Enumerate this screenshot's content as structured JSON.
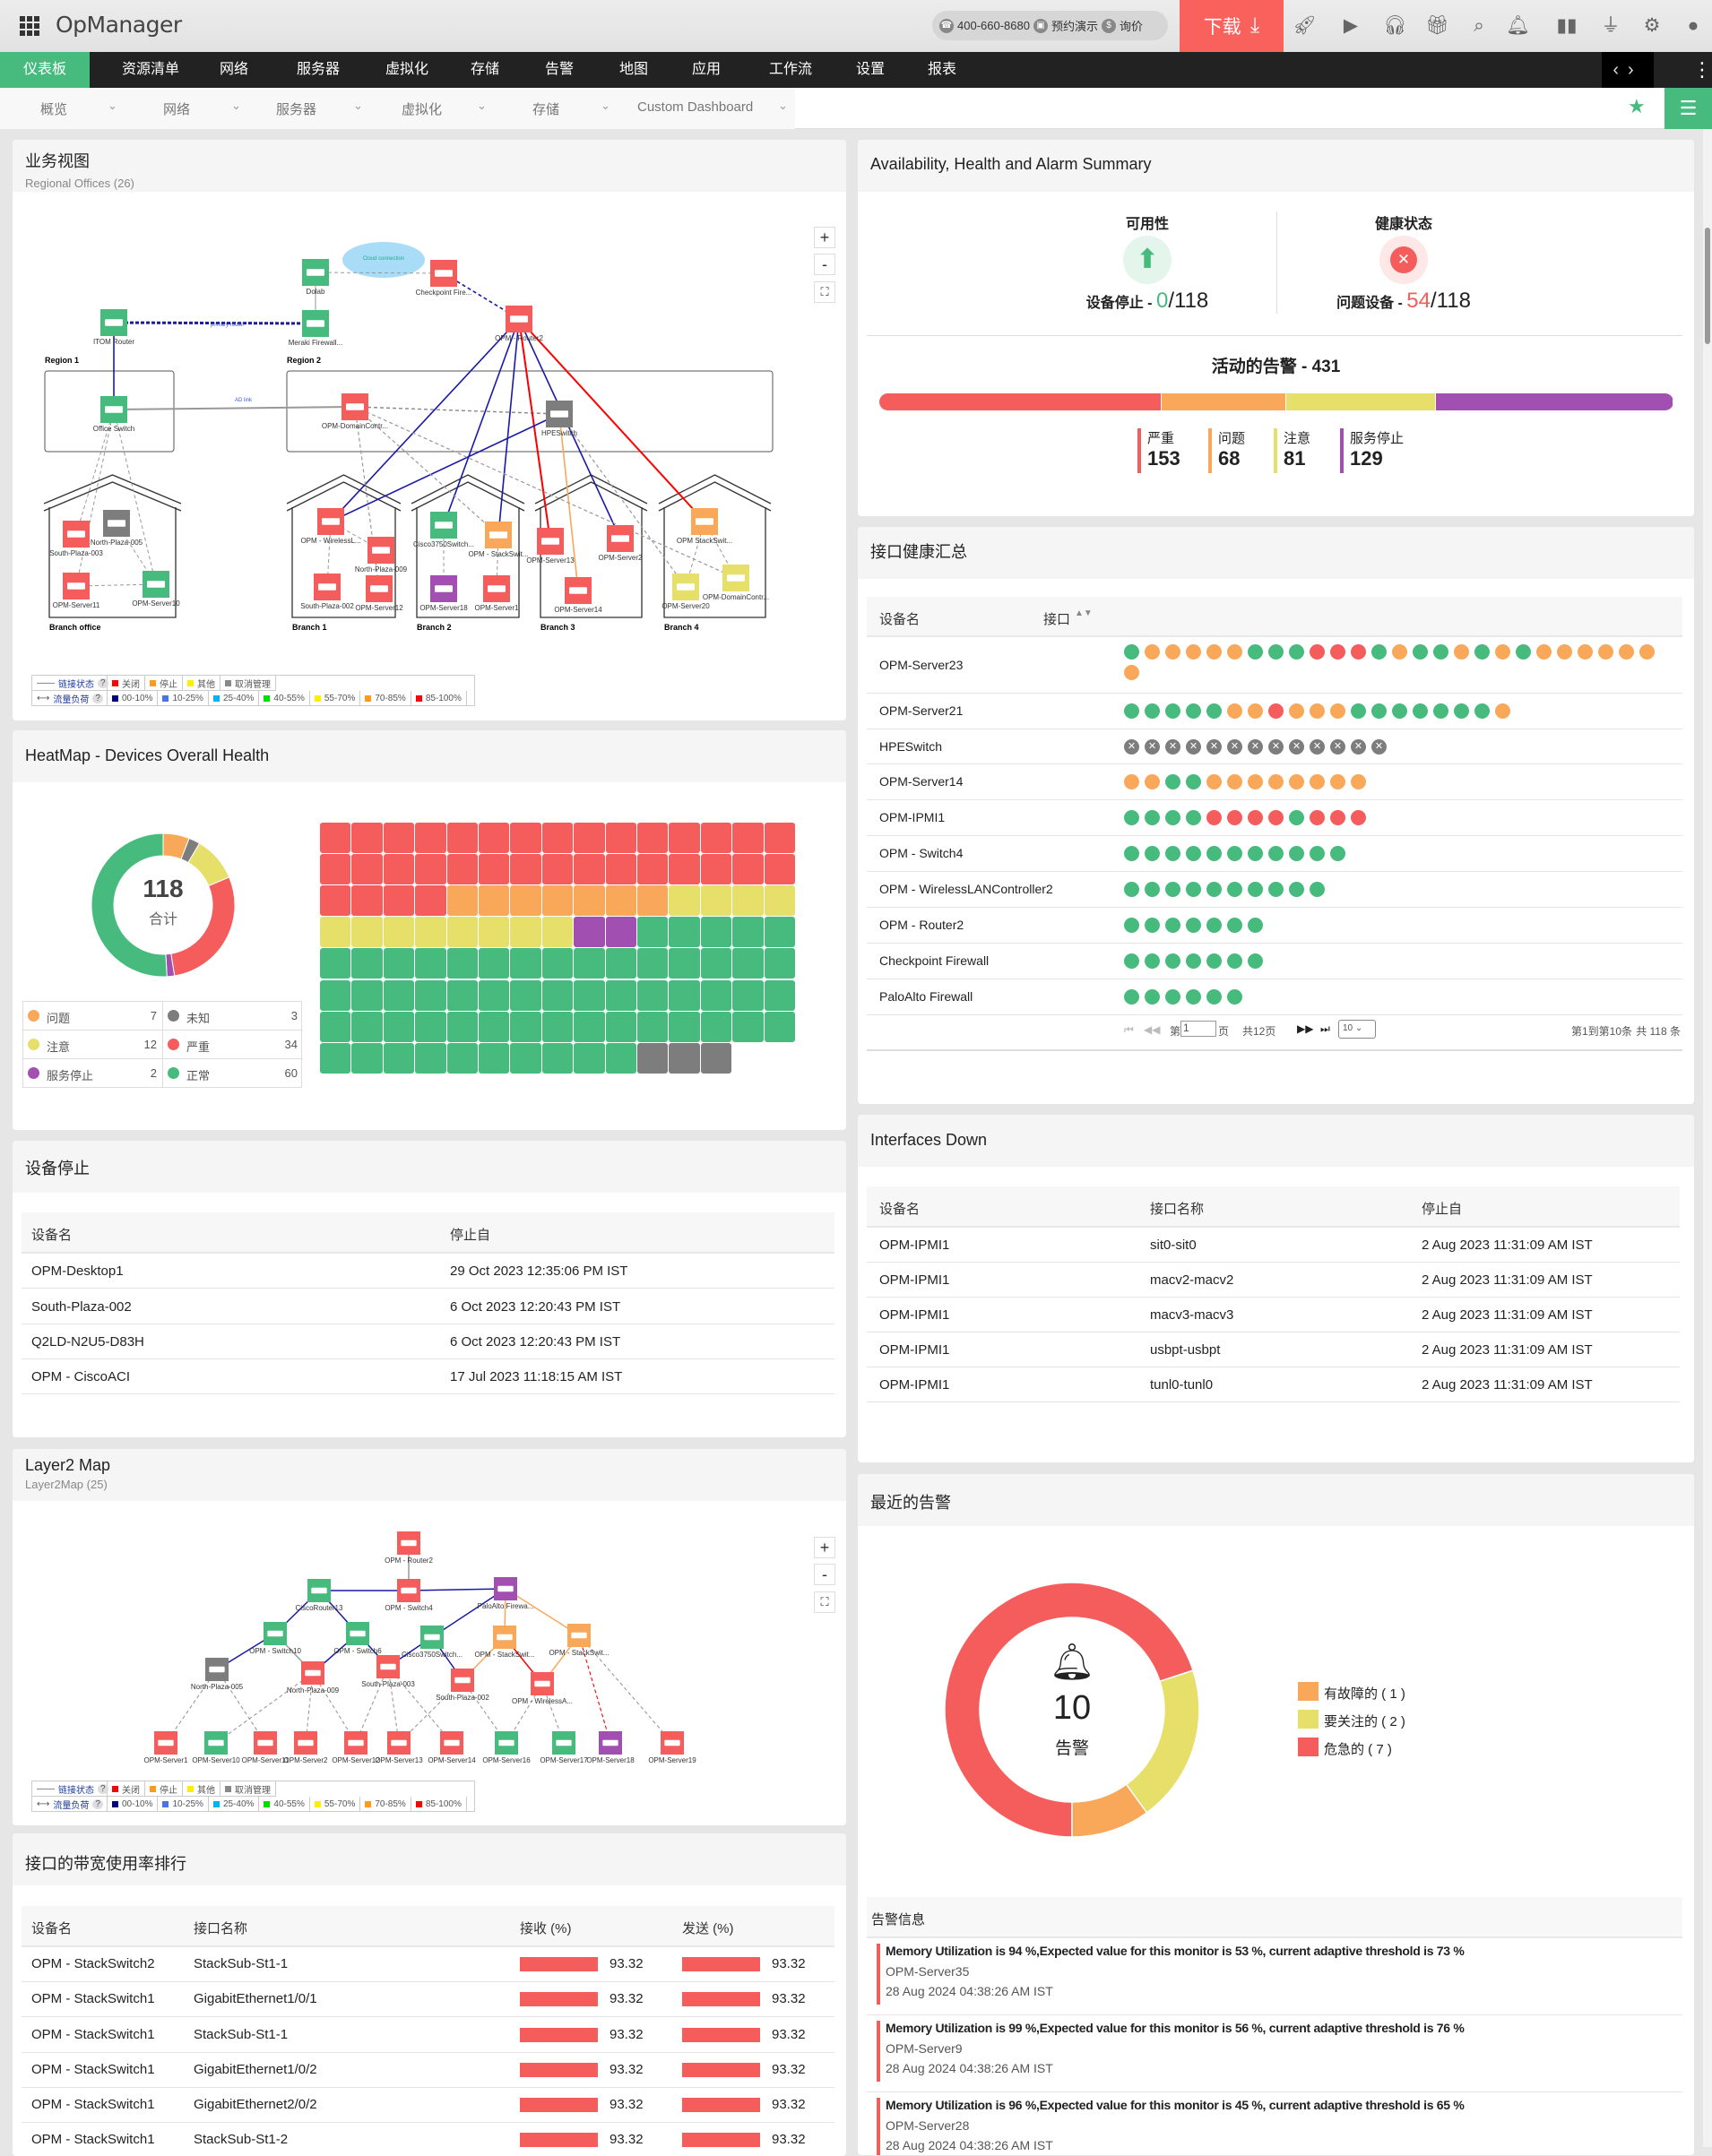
{
  "app": {
    "title": "OpManager",
    "phone": "400-660-8680",
    "demo": "预约演示",
    "quote": "询价",
    "download": "下载"
  },
  "top_icons": [
    "rocket-icon",
    "presentation-icon",
    "headset-icon",
    "gift-icon",
    "search-icon",
    "bell-icon",
    "battery-icon",
    "plug-icon",
    "gear-icon",
    "user-icon"
  ],
  "nav": {
    "items": [
      "仪表板",
      "资源清单",
      "网络",
      "服务器",
      "虚拟化",
      "存储",
      "告警",
      "地图",
      "应用",
      "工作流",
      "设置",
      "报表"
    ],
    "active": 0
  },
  "subnav": {
    "items": [
      "概览",
      "网络",
      "服务器",
      "虚拟化",
      "存储",
      "Custom Dashboard"
    ]
  },
  "colors": {
    "critical": "#f55c5c",
    "trouble": "#f9a85a",
    "attention": "#e6df6a",
    "down": "#a14fb0",
    "clear": "#47bb7d",
    "unknown": "#7d7d7d",
    "link": "#1a1aa6"
  },
  "business_view": {
    "title": "业务视图",
    "subtitle": "Regional Offices (26)",
    "regions": [
      "Region 1",
      "Region 2"
    ],
    "branches": [
      "Branch office",
      "Branch 1",
      "Branch 2",
      "Branch 3",
      "Branch 4"
    ],
    "link_labels": [
      "Cloud connection",
      "primary router",
      "AD link"
    ],
    "nodes": [
      {
        "label": "Dolab",
        "status": "clear"
      },
      {
        "label": "Checkpoint Fire...",
        "status": "critical"
      },
      {
        "label": "Meraki Firewall...",
        "status": "clear"
      },
      {
        "label": "ITOM Router",
        "status": "clear"
      },
      {
        "label": "OPM - Router2",
        "status": "critical"
      },
      {
        "label": "Office Switch",
        "status": "clear"
      },
      {
        "label": "OPM-DomainContr...",
        "status": "critical"
      },
      {
        "label": "HPESwitch",
        "status": "unknown"
      },
      {
        "label": "South-Plaza-003",
        "status": "critical"
      },
      {
        "label": "North-Plaza-005",
        "status": "unknown"
      },
      {
        "label": "OPM-Server11",
        "status": "critical"
      },
      {
        "label": "OPM-Server10",
        "status": "clear"
      },
      {
        "label": "OPM - WirelessL...",
        "status": "critical"
      },
      {
        "label": "North-Plaza-009",
        "status": "critical"
      },
      {
        "label": "South-Plaza-002",
        "status": "critical"
      },
      {
        "label": "OPM-Server12",
        "status": "critical"
      },
      {
        "label": "Cisco3750Switch...",
        "status": "clear"
      },
      {
        "label": "OPM - StackSwit...",
        "status": "trouble"
      },
      {
        "label": "OPM-Server18",
        "status": "down"
      },
      {
        "label": "OPM-Server1",
        "status": "critical"
      },
      {
        "label": "OPM-Server13",
        "status": "critical"
      },
      {
        "label": "OPM-Server2",
        "status": "critical"
      },
      {
        "label": "OPM-Server14",
        "status": "critical"
      },
      {
        "label": "OPM StackSwit...",
        "status": "trouble"
      },
      {
        "label": "OPM-Server20",
        "status": "attention"
      },
      {
        "label": "OPM-DomainContr...",
        "status": "attention"
      }
    ]
  },
  "map_legend": {
    "link_status": "链接状态",
    "traffic": "流量负荷",
    "help": "?",
    "status_items": [
      {
        "label": "关闭",
        "color": "#ff0000"
      },
      {
        "label": "停止",
        "color": "#ff9922"
      },
      {
        "label": "其他",
        "color": "#ffee00"
      },
      {
        "label": "取消管理",
        "color": "#888888"
      }
    ],
    "traffic_items": [
      {
        "label": "00-10%",
        "color": "#000080"
      },
      {
        "label": "10-25%",
        "color": "#4a74e0"
      },
      {
        "label": "25-40%",
        "color": "#00b4f0"
      },
      {
        "label": "40-55%",
        "color": "#00dd00"
      },
      {
        "label": "55-70%",
        "color": "#ffee00"
      },
      {
        "label": "70-85%",
        "color": "#ff9922"
      },
      {
        "label": "85-100%",
        "color": "#ff0000"
      }
    ]
  },
  "map_controls": {
    "zoom_in": "+",
    "zoom_out": "-",
    "fit": "⛶"
  },
  "heatmap": {
    "title": "HeatMap - Devices Overall Health",
    "total": "118",
    "total_label": "合计",
    "categories": [
      {
        "label": "问题",
        "count": 7,
        "status": "trouble"
      },
      {
        "label": "未知",
        "count": 3,
        "status": "unknown"
      },
      {
        "label": "注意",
        "count": 12,
        "status": "attention"
      },
      {
        "label": "严重",
        "count": 34,
        "status": "critical"
      },
      {
        "label": "服务停止",
        "count": 2,
        "status": "down"
      },
      {
        "label": "正常",
        "count": 60,
        "status": "clear"
      }
    ]
  },
  "devices_down": {
    "title": "设备停止",
    "columns": [
      "设备名",
      "停止自"
    ],
    "rows": [
      [
        "OPM-Desktop1",
        "29 Oct 2023 12:35:06 PM IST"
      ],
      [
        "South-Plaza-002",
        "6 Oct 2023 12:20:43 PM IST"
      ],
      [
        "Q2LD-N2U5-D83H",
        "6 Oct 2023 12:20:43 PM IST"
      ],
      [
        "OPM - CiscoACI",
        "17 Jul 2023 11:18:15 AM IST"
      ]
    ]
  },
  "layer2": {
    "title": "Layer2 Map",
    "subtitle": "Layer2Map (25)",
    "nodes": [
      {
        "label": "OPM - Router2",
        "status": "critical"
      },
      {
        "label": "OPM - Switch4",
        "status": "critical"
      },
      {
        "label": "PaloAlto Firewa...",
        "status": "down"
      },
      {
        "label": "CiscoRouter13",
        "status": "clear"
      },
      {
        "label": "OPM - Switch10",
        "status": "clear"
      },
      {
        "label": "OPM - Switch6",
        "status": "clear"
      },
      {
        "label": "Cisco3750Switch...",
        "status": "clear"
      },
      {
        "label": "OPM - StackSwit...",
        "status": "trouble"
      },
      {
        "label": "OPM - StackSwit...",
        "status": "trouble"
      },
      {
        "label": "North-Plaza-005",
        "status": "unknown"
      },
      {
        "label": "North-Plaza-009",
        "status": "critical"
      },
      {
        "label": "South-Plaza-003",
        "status": "critical"
      },
      {
        "label": "South-Plaza-002",
        "status": "critical"
      },
      {
        "label": "OPM - WirelessA...",
        "status": "critical"
      },
      {
        "label": "OPM-Server1",
        "status": "critical"
      },
      {
        "label": "OPM-Server10",
        "status": "clear"
      },
      {
        "label": "OPM-Server11",
        "status": "critical"
      },
      {
        "label": "OPM-Server2",
        "status": "critical"
      },
      {
        "label": "OPM-Server12",
        "status": "critical"
      },
      {
        "label": "OPM-Server13",
        "status": "critical"
      },
      {
        "label": "OPM-Server14",
        "status": "critical"
      },
      {
        "label": "OPM-Server16",
        "status": "clear"
      },
      {
        "label": "OPM-Server17",
        "status": "clear"
      },
      {
        "label": "OPM-Server18",
        "status": "down"
      },
      {
        "label": "OPM-Server19",
        "status": "critical"
      }
    ]
  },
  "bandwidth": {
    "title": "接口的带宽使用率排行",
    "columns": [
      "设备名",
      "接口名称",
      "接收 (%)",
      "发送 (%)"
    ],
    "rows": [
      [
        "OPM - StackSwitch2",
        "StackSub-St1-1",
        "93.32",
        "93.32"
      ],
      [
        "OPM - StackSwitch1",
        "GigabitEthernet1/0/1",
        "93.32",
        "93.32"
      ],
      [
        "OPM - StackSwitch1",
        "StackSub-St1-1",
        "93.32",
        "93.32"
      ],
      [
        "OPM - StackSwitch1",
        "GigabitEthernet1/0/2",
        "93.32",
        "93.32"
      ],
      [
        "OPM - StackSwitch1",
        "GigabitEthernet2/0/2",
        "93.32",
        "93.32"
      ],
      [
        "OPM - StackSwitch1",
        "StackSub-St1-2",
        "93.32",
        "93.32"
      ]
    ]
  },
  "summary": {
    "title": "Availability, Health and Alarm Summary",
    "availability": {
      "title": "可用性",
      "label": "设备停止 - ",
      "value": "0",
      "total": "/118"
    },
    "health": {
      "title": "健康状态",
      "label": "问题设备 - ",
      "value": "54",
      "total": "/118"
    },
    "alarms": {
      "title": "活动的告警 - 431",
      "items": [
        {
          "label": "严重",
          "value": 153,
          "status": "critical"
        },
        {
          "label": "问题",
          "value": 68,
          "status": "trouble"
        },
        {
          "label": "注意",
          "value": 81,
          "status": "attention"
        },
        {
          "label": "服务停止",
          "value": 129,
          "status": "down"
        }
      ]
    }
  },
  "interface_health": {
    "title": "接口健康汇总",
    "columns": [
      "设备名",
      "接口"
    ],
    "status_key": {
      "g": "clear",
      "o": "trouble",
      "r": "critical",
      "x": "unknown"
    },
    "rows": [
      {
        "device": "OPM-Server23",
        "ports": "gooooogggrrrgoggogogooooooo"
      },
      {
        "device": "OPM-Server21",
        "ports": "gggggoorooogggggggo"
      },
      {
        "device": "HPESwitch",
        "ports": "xxxxxxxxxxxxx"
      },
      {
        "device": "OPM-Server14",
        "ports": "ooggoooooooo"
      },
      {
        "device": "OPM-IPMI1",
        "ports": "ggggrrrrgrrr"
      },
      {
        "device": "OPM - Switch4",
        "ports": "ggggggggggg"
      },
      {
        "device": "OPM - WirelessLANController2",
        "ports": "gggggggggg"
      },
      {
        "device": "OPM - Router2",
        "ports": "ggggggg"
      },
      {
        "device": "Checkpoint Firewall",
        "ports": "ggggggg"
      },
      {
        "device": "PaloAlto Firewall",
        "ports": "gggggg"
      }
    ],
    "pagination": {
      "page_prefix": "第",
      "page": "1",
      "page_suffix": "页",
      "total_pages": "共12页",
      "page_size": "10",
      "range": "第1到第10条",
      "total": "共 118 条"
    }
  },
  "interfaces_down": {
    "title": "Interfaces Down",
    "columns": [
      "设备名",
      "接口名称",
      "停止自"
    ],
    "rows": [
      [
        "OPM-IPMI1",
        "sit0-sit0",
        "2 Aug 2023 11:31:09 AM IST"
      ],
      [
        "OPM-IPMI1",
        "macv2-macv2",
        "2 Aug 2023 11:31:09 AM IST"
      ],
      [
        "OPM-IPMI1",
        "macv3-macv3",
        "2 Aug 2023 11:31:09 AM IST"
      ],
      [
        "OPM-IPMI1",
        "usbpt-usbpt",
        "2 Aug 2023 11:31:09 AM IST"
      ],
      [
        "OPM-IPMI1",
        "tunl0-tunl0",
        "2 Aug 2023 11:31:09 AM IST"
      ]
    ]
  },
  "recent_alarms": {
    "title": "最近的告警",
    "count": "10",
    "count_label": "告警",
    "legend": [
      {
        "label": "有故障的 ( 1 )",
        "value": 1,
        "status": "trouble"
      },
      {
        "label": "要关注的 ( 2 )",
        "value": 2,
        "status": "attention"
      },
      {
        "label": "危急的 ( 7 )",
        "value": 7,
        "status": "critical"
      }
    ],
    "info_header": "告警信息",
    "items": [
      {
        "message": "Memory Utilization is 94 %,Expected value for this monitor is 53 %, current adaptive threshold is 73 %",
        "device": "OPM-Server35",
        "time": "28 Aug 2024 04:38:26 AM IST"
      },
      {
        "message": "Memory Utilization is 99 %,Expected value for this monitor is 56 %, current adaptive threshold is 76 %",
        "device": "OPM-Server9",
        "time": "28 Aug 2024 04:38:26 AM IST"
      },
      {
        "message": "Memory Utilization is 96 %,Expected value for this monitor is 45 %, current adaptive threshold is 65 %",
        "device": "OPM-Server28",
        "time": "28 Aug 2024 04:38:26 AM IST"
      }
    ]
  }
}
